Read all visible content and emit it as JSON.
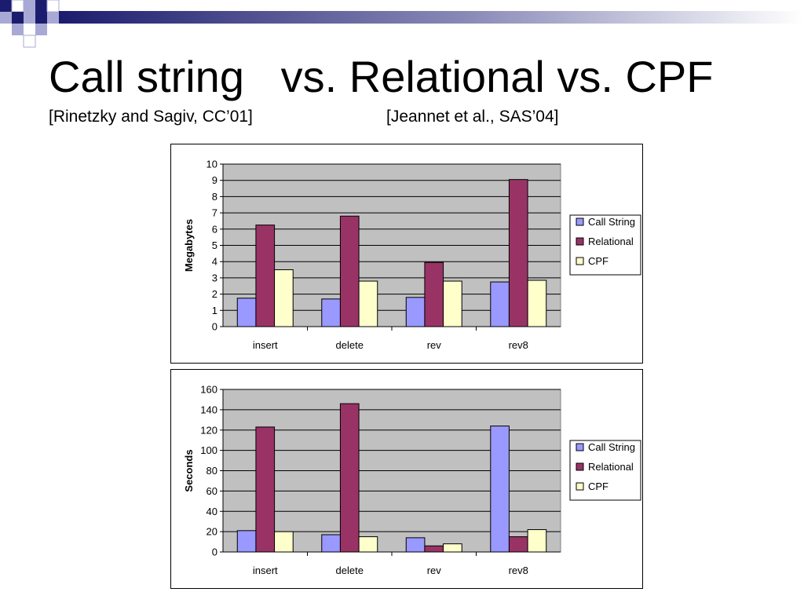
{
  "slide": {
    "title": "Call string   vs. Relational vs. CPF",
    "subtitle_left": "[Rinetzky and Sagiv, CC’01]",
    "subtitle_right": "[Jeannet et al., SAS’04]",
    "colors": {
      "decor_navy": "#1c1c6e",
      "decor_lavender": "#a9a9d6",
      "plot_bg": "#c0c0c0"
    }
  },
  "chart_data": [
    {
      "type": "bar",
      "title": "",
      "xlabel": "",
      "ylabel": "Megabytes",
      "categories": [
        "insert",
        "delete",
        "rev",
        "rev8"
      ],
      "ylim": [
        0,
        10
      ],
      "yticks": [
        0,
        1,
        2,
        3,
        4,
        5,
        6,
        7,
        8,
        9,
        10
      ],
      "grid": true,
      "legend_position": "right",
      "series": [
        {
          "name": "Call String",
          "color": "#9999ff",
          "values": [
            1.75,
            1.7,
            1.8,
            2.75
          ]
        },
        {
          "name": "Relational",
          "color": "#993366",
          "values": [
            6.25,
            6.8,
            3.95,
            9.05
          ]
        },
        {
          "name": "CPF",
          "color": "#ffffcc",
          "values": [
            3.5,
            2.8,
            2.8,
            2.85
          ]
        }
      ]
    },
    {
      "type": "bar",
      "title": "",
      "xlabel": "",
      "ylabel": "Seconds",
      "categories": [
        "insert",
        "delete",
        "rev",
        "rev8"
      ],
      "ylim": [
        0,
        160
      ],
      "yticks": [
        0,
        20,
        40,
        60,
        80,
        100,
        120,
        140,
        160
      ],
      "grid": true,
      "legend_position": "right",
      "series": [
        {
          "name": "Call String",
          "color": "#9999ff",
          "values": [
            21,
            17,
            14,
            124
          ]
        },
        {
          "name": "Relational",
          "color": "#993366",
          "values": [
            123,
            146,
            6,
            15
          ]
        },
        {
          "name": "CPF",
          "color": "#ffffcc",
          "values": [
            20,
            15,
            8,
            22
          ]
        }
      ]
    }
  ]
}
